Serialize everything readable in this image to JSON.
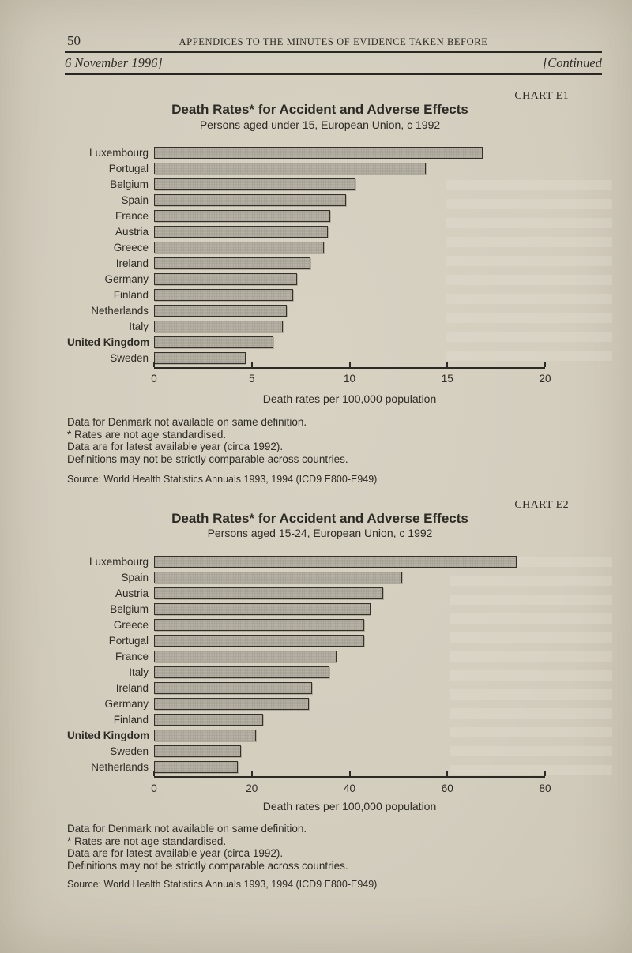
{
  "page": {
    "number": "50",
    "running_header": "APPENDICES TO THE MINUTES OF EVIDENCE TAKEN BEFORE",
    "date_line": "6 November 1996]",
    "continued_label": "[Continued"
  },
  "colors": {
    "paper": "#d5cfc0",
    "ink": "#2c2a24",
    "bar_fill": "#b5b0a3",
    "bar_border": "#33302a"
  },
  "notes": {
    "lines": [
      "Data for Denmark not available on same definition.",
      "* Rates are not age standardised.",
      "Data are for latest available year (circa 1992).",
      "Definitions may not be strictly comparable across countries."
    ],
    "source": "Source: World Health Statistics Annuals 1993, 1994 (ICD9 E800-E949)"
  },
  "chart_data": [
    {
      "type": "bar",
      "orientation": "horizontal",
      "chart_label": "CHART E1",
      "title": "Death Rates* for Accident and Adverse Effects",
      "subtitle": "Persons aged under 15, European Union, c 1992",
      "categories": [
        "Luxembourg",
        "Portugal",
        "Belgium",
        "Spain",
        "France",
        "Austria",
        "Greece",
        "Ireland",
        "Germany",
        "Finland",
        "Netherlands",
        "Italy",
        "United Kingdom",
        "Sweden"
      ],
      "values": [
        16.8,
        13.9,
        10.3,
        9.8,
        9.0,
        8.9,
        8.7,
        8.0,
        7.3,
        7.1,
        6.8,
        6.6,
        6.1,
        4.7
      ],
      "xlabel": "Death rates per 100,000 population",
      "xlim": [
        0,
        20
      ],
      "xticks": [
        0,
        5,
        10,
        15,
        20
      ],
      "grid": false,
      "legend": "none",
      "highlight_category": "United Kingdom"
    },
    {
      "type": "bar",
      "orientation": "horizontal",
      "chart_label": "CHART E2",
      "title": "Death Rates* for Accident and Adverse Effects",
      "subtitle": "Persons aged 15-24, European Union, c 1992",
      "categories": [
        "Luxembourg",
        "Spain",
        "Austria",
        "Belgium",
        "Greece",
        "Portugal",
        "France",
        "Italy",
        "Ireland",
        "Germany",
        "Finland",
        "United Kingdom",
        "Sweden",
        "Netherlands"
      ],
      "values": [
        74.2,
        50.8,
        46.9,
        44.3,
        43.0,
        43.0,
        37.3,
        35.8,
        32.4,
        31.6,
        22.3,
        20.8,
        17.7,
        17.2
      ],
      "xlabel": "Death rates per 100,000 population",
      "xlim": [
        0,
        80
      ],
      "xticks": [
        0,
        20,
        40,
        60,
        80
      ],
      "grid": false,
      "legend": "none",
      "highlight_category": "United Kingdom"
    }
  ]
}
